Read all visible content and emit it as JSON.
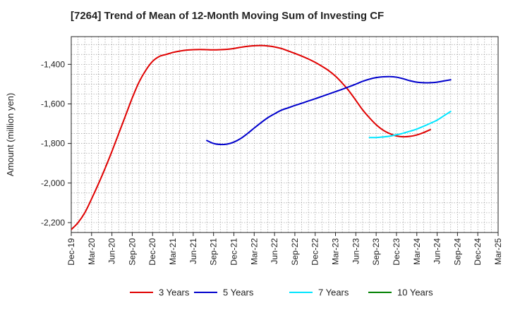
{
  "chart_data": {
    "type": "line",
    "title": "[7264]  Trend of Mean of 12-Month Moving Sum of Investing CF",
    "xlabel": "",
    "ylabel": "Amount (million yen)",
    "ylim": [
      -2250,
      -1260
    ],
    "yticks": [
      -1400,
      -1600,
      -1800,
      -2000,
      -2200
    ],
    "ytick_labels": [
      "-1,400",
      "-1,600",
      "-1,800",
      "-2,000",
      "-2,200"
    ],
    "x_start": "2019-12",
    "x_end": "2025-03",
    "xtick_labels": [
      "Dec-19",
      "Mar-20",
      "Jun-20",
      "Sep-20",
      "Dec-20",
      "Mar-21",
      "Jun-21",
      "Sep-21",
      "Dec-21",
      "Mar-22",
      "Jun-22",
      "Sep-22",
      "Dec-22",
      "Mar-23",
      "Jun-23",
      "Sep-23",
      "Dec-23",
      "Mar-24",
      "Jun-24",
      "Sep-24",
      "Dec-24",
      "Mar-25"
    ],
    "grid": true,
    "legend_position": "bottom",
    "series": [
      {
        "name": "3 Years",
        "color": "#e00000",
        "start": "2019-12",
        "values": [
          -2235,
          -2200,
          -2150,
          -2080,
          -2005,
          -1925,
          -1840,
          -1750,
          -1660,
          -1570,
          -1490,
          -1430,
          -1385,
          -1360,
          -1350,
          -1340,
          -1333,
          -1328,
          -1326,
          -1325,
          -1326,
          -1327,
          -1326,
          -1324,
          -1320,
          -1314,
          -1309,
          -1306,
          -1305,
          -1307,
          -1312,
          -1320,
          -1332,
          -1345,
          -1358,
          -1373,
          -1390,
          -1410,
          -1432,
          -1460,
          -1495,
          -1535,
          -1582,
          -1630,
          -1670,
          -1705,
          -1732,
          -1750,
          -1762,
          -1766,
          -1764,
          -1757,
          -1745,
          -1730
        ]
      },
      {
        "name": "5 Years",
        "color": "#0000cc",
        "start": "2021-08",
        "values": [
          -1785,
          -1800,
          -1805,
          -1803,
          -1793,
          -1775,
          -1750,
          -1722,
          -1695,
          -1670,
          -1650,
          -1632,
          -1620,
          -1608,
          -1597,
          -1585,
          -1574,
          -1562,
          -1550,
          -1538,
          -1526,
          -1513,
          -1500,
          -1486,
          -1475,
          -1467,
          -1463,
          -1462,
          -1465,
          -1473,
          -1483,
          -1490,
          -1493,
          -1493,
          -1490,
          -1484,
          -1478
        ]
      },
      {
        "name": "7 Years",
        "color": "#00e5ff",
        "start": "2023-08",
        "values": [
          -1770,
          -1770,
          -1767,
          -1763,
          -1756,
          -1748,
          -1738,
          -1727,
          -1713,
          -1698,
          -1682,
          -1660,
          -1638
        ]
      },
      {
        "name": "10 Years",
        "color": "#008000",
        "start": "2023-08",
        "values": []
      }
    ]
  }
}
